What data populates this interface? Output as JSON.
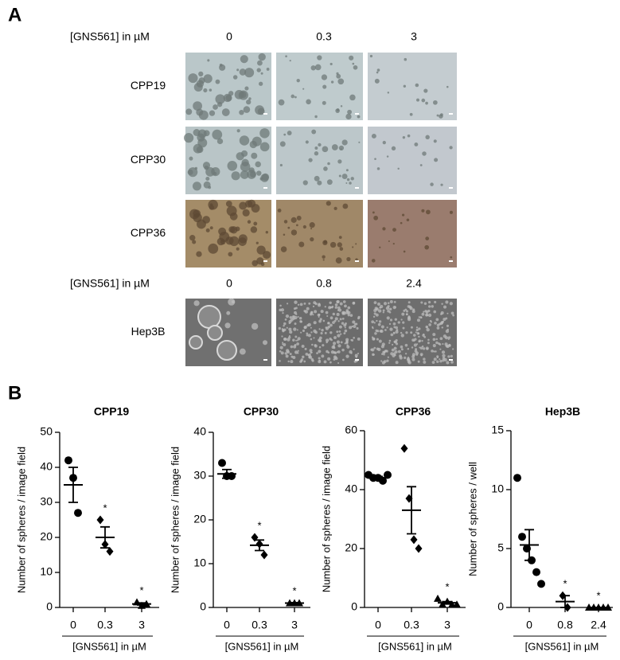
{
  "panel_a": {
    "label": "A",
    "groups": [
      {
        "header": "[GNS561] in µM",
        "doses": [
          "0",
          "0.3",
          "3"
        ],
        "cell_lines": [
          "CPP19",
          "CPP30",
          "CPP36"
        ]
      },
      {
        "header": "[GNS561] in µM",
        "doses": [
          "0",
          "0.8",
          "2.4"
        ],
        "cell_lines": [
          "Hep3B"
        ]
      }
    ]
  },
  "panel_b": {
    "label": "B"
  },
  "chart_data": [
    {
      "type": "dotplot",
      "title": "CPP19",
      "ylabel": "Number of spheres / image field",
      "xlabel": "[GNS561] in µM",
      "categories": [
        "0",
        "0.3",
        "3"
      ],
      "markers": [
        "circle",
        "diamond",
        "triangle"
      ],
      "color": "#000000",
      "values": [
        [
          42,
          37,
          27
        ],
        [
          25,
          18,
          16
        ],
        [
          1.5,
          0.5,
          1
        ]
      ],
      "means": [
        35,
        20,
        1
      ],
      "sem": [
        5,
        3,
        0.3
      ],
      "stars": [
        null,
        "*",
        "*"
      ],
      "ylim": [
        0,
        50
      ],
      "yticks": [
        0,
        10,
        20,
        30,
        40,
        50
      ]
    },
    {
      "type": "dotplot",
      "title": "CPP30",
      "ylabel": "Number of spheres / image field",
      "xlabel": "[GNS561] in µM",
      "categories": [
        "0",
        "0.3",
        "3"
      ],
      "markers": [
        "circle",
        "diamond",
        "triangle"
      ],
      "color": "#000000",
      "values": [
        [
          33,
          30,
          30
        ],
        [
          16,
          14.5,
          12
        ],
        [
          1,
          1,
          1
        ]
      ],
      "means": [
        30.5,
        14.2,
        1
      ],
      "sem": [
        1,
        1.2,
        0.1
      ],
      "stars": [
        null,
        "*",
        "*"
      ],
      "ylim": [
        0,
        40
      ],
      "yticks": [
        0,
        10,
        20,
        30,
        40
      ]
    },
    {
      "type": "dotplot",
      "title": "CPP36",
      "ylabel": "Number of spheres / image field",
      "xlabel": "[GNS561] in µM",
      "categories": [
        "0",
        "0.3",
        "3"
      ],
      "markers": [
        "circle",
        "diamond",
        "triangle"
      ],
      "color": "#000000",
      "values": [
        [
          45,
          44,
          44,
          43,
          45
        ],
        [
          54,
          37,
          23,
          20
        ],
        [
          3,
          1,
          2,
          1,
          1
        ]
      ],
      "means": [
        44,
        33,
        1.6
      ],
      "sem": [
        0.5,
        8,
        0.4
      ],
      "stars": [
        null,
        null,
        "*"
      ],
      "ylim": [
        0,
        60
      ],
      "yticks": [
        0,
        20,
        40,
        60
      ]
    },
    {
      "type": "dotplot",
      "title": "Hep3B",
      "ylabel": "Number of spheres / well",
      "xlabel": "[GNS561] in µM",
      "categories": [
        "0",
        "0.8",
        "2.4"
      ],
      "markers": [
        "circle",
        "diamond",
        "triangle"
      ],
      "color": "#000000",
      "values": [
        [
          11,
          6,
          5,
          4,
          3,
          2
        ],
        [
          1,
          0
        ],
        [
          0,
          0,
          0,
          0,
          0
        ]
      ],
      "means": [
        5.3,
        0.5,
        0
      ],
      "sem": [
        1.3,
        0.5,
        0
      ],
      "stars": [
        null,
        "*",
        "*"
      ],
      "ylim": [
        0,
        15
      ],
      "yticks": [
        0,
        5,
        10,
        15
      ]
    }
  ]
}
